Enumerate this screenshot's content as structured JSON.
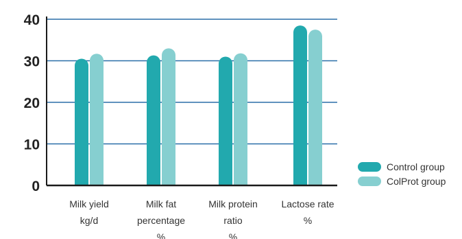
{
  "chart_data": {
    "type": "bar",
    "categories": [
      [
        "Milk yield",
        "kg/d"
      ],
      [
        "Milk fat",
        "percentage",
        "%"
      ],
      [
        "Milk protein",
        "ratio",
        "%"
      ],
      [
        "Lactose rate",
        "%"
      ]
    ],
    "series": [
      {
        "name": "Control group",
        "values": [
          30.5,
          31.3,
          31.0,
          38.5
        ],
        "color": "#22a9ae"
      },
      {
        "name": "ColProt group",
        "values": [
          31.7,
          33.0,
          31.8,
          37.5
        ],
        "color": "#86cfd0"
      }
    ],
    "ylim": [
      0,
      40
    ],
    "yticks": [
      0,
      10,
      20,
      30,
      40
    ],
    "grid": true,
    "grid_color": "#2a6fa8",
    "axis_color": "#1a1a1a",
    "legend_position": "right",
    "title": "",
    "xlabel": "",
    "ylabel": ""
  }
}
